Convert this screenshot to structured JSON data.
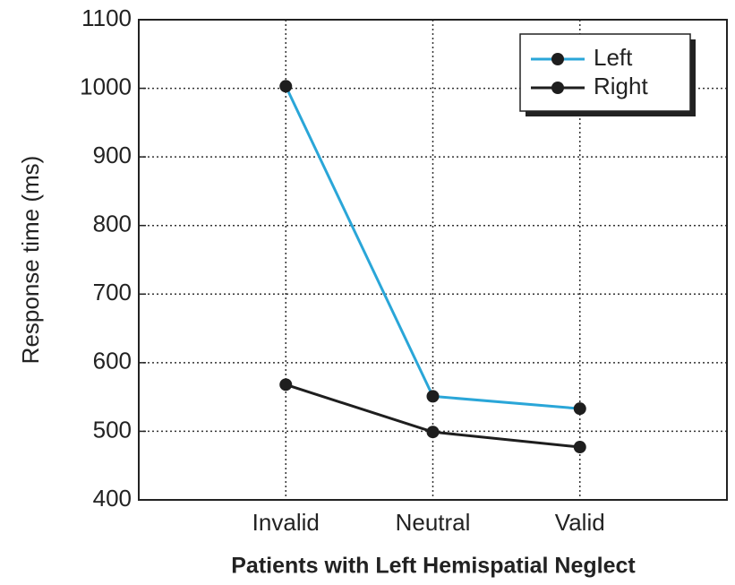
{
  "chart_data": {
    "type": "line",
    "x_label": "Patients with Left Hemispatial Neglect",
    "y_label": "Response time (ms)",
    "categories": [
      "Invalid",
      "Neutral",
      "Valid"
    ],
    "series": [
      {
        "name": "Left",
        "color": "#2aa6d8",
        "values": [
          1003,
          551,
          533
        ]
      },
      {
        "name": "Right",
        "color": "#1e1e1e",
        "values": [
          568,
          499,
          477
        ]
      }
    ],
    "ylim": [
      400,
      1100
    ],
    "yticks": [
      400,
      500,
      600,
      700,
      800,
      900,
      1000,
      1100
    ],
    "grid": true,
    "legend": "upper right"
  }
}
